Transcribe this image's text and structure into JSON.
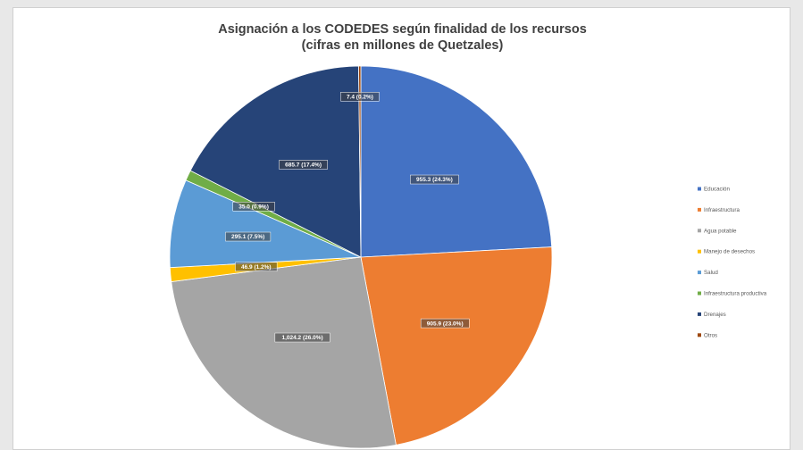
{
  "chart_data": {
    "type": "pie",
    "title": "Asignación a los CODEDES según finalidad de los recursos",
    "subtitle": "(cifras en millones de Quetzales)",
    "legend_position": "right",
    "slices": [
      {
        "name": "Educación",
        "value": 955.3,
        "percent": 24.3,
        "label": "955.3 (24.3%)",
        "color": "#4472C4"
      },
      {
        "name": "Infraestructura",
        "value": 905.9,
        "percent": 23.0,
        "label": "905.9 (23.0%)",
        "color": "#ED7D31"
      },
      {
        "name": "Agua potable",
        "value": 1024.2,
        "percent": 26.0,
        "label": "1,024.2 (26.0%)",
        "color": "#A5A5A5"
      },
      {
        "name": "Manejo de desechos",
        "value": 46.9,
        "percent": 1.2,
        "label": "46.9 (1.2%)",
        "color": "#FFC000"
      },
      {
        "name": "Salud",
        "value": 295.1,
        "percent": 7.5,
        "label": "295.1 (7.5%)",
        "color": "#5B9BD5"
      },
      {
        "name": "Infraestructura productiva",
        "value": 35.0,
        "percent": 0.9,
        "label": "35.0 (0.9%)",
        "color": "#70AD47"
      },
      {
        "name": "Drenajes",
        "value": 685.7,
        "percent": 17.4,
        "label": "685.7 (17.4%)",
        "color": "#264478"
      },
      {
        "name": "Otros",
        "value": 7.4,
        "percent": 0.2,
        "label": "7.4 (0.2%)",
        "color": "#9E480E"
      }
    ]
  }
}
